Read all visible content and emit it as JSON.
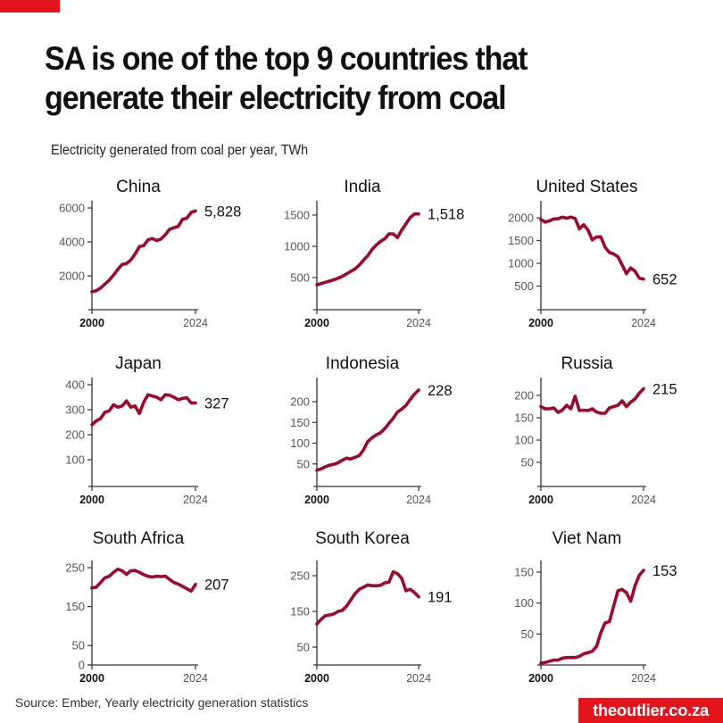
{
  "header": {
    "title": "SA is one of the top 9 countries that generate their electricity from coal",
    "title_line1": "SA is one of the top 9 countries that",
    "title_line2": "generate their electricity from coal",
    "subtitle": "Electricity generated from coal per year, TWh"
  },
  "footer": {
    "source": "Source: Ember, Yearly electricity generation statistics",
    "brand": "theoutlier.co.za"
  },
  "colors": {
    "line": "#9b0b2e",
    "accent": "#e3141b",
    "axis": "#333333",
    "tick_label": "#555555"
  },
  "chart_data": [
    {
      "type": "line",
      "title": "China",
      "xlabel": "",
      "ylabel": "TWh",
      "x_tick_labels": [
        "2000",
        "2024"
      ],
      "y_ticks": [
        2000,
        4000,
        6000
      ],
      "ylim": [
        0,
        6500
      ],
      "end_label": "5,828",
      "x": [
        2000,
        2001,
        2002,
        2003,
        2004,
        2005,
        2006,
        2007,
        2008,
        2009,
        2010,
        2011,
        2012,
        2013,
        2014,
        2015,
        2016,
        2017,
        2018,
        2019,
        2020,
        2021,
        2022,
        2023,
        2024
      ],
      "values": [
        1060,
        1120,
        1280,
        1510,
        1740,
        2040,
        2380,
        2670,
        2720,
        2930,
        3280,
        3720,
        3780,
        4120,
        4200,
        4080,
        4170,
        4420,
        4740,
        4830,
        4920,
        5330,
        5400,
        5740,
        5828
      ]
    },
    {
      "type": "line",
      "title": "India",
      "xlabel": "",
      "ylabel": "TWh",
      "x_tick_labels": [
        "2000",
        "2024"
      ],
      "y_ticks": [
        500,
        1000,
        1500
      ],
      "ylim": [
        0,
        1650
      ],
      "end_label": "1,518",
      "x": [
        2000,
        2001,
        2002,
        2003,
        2004,
        2005,
        2006,
        2007,
        2008,
        2009,
        2010,
        2011,
        2012,
        2013,
        2014,
        2015,
        2016,
        2017,
        2018,
        2019,
        2020,
        2021,
        2022,
        2023,
        2024
      ],
      "values": [
        385,
        405,
        425,
        445,
        465,
        490,
        520,
        560,
        600,
        640,
        700,
        780,
        850,
        950,
        1020,
        1080,
        1120,
        1200,
        1200,
        1140,
        1260,
        1360,
        1460,
        1518,
        1518
      ]
    },
    {
      "type": "line",
      "title": "United States",
      "xlabel": "",
      "ylabel": "TWh",
      "x_tick_labels": [
        "2000",
        "2024"
      ],
      "y_ticks": [
        500,
        1000,
        1500,
        2000
      ],
      "ylim": [
        0,
        2250
      ],
      "end_label": "652",
      "x": [
        2000,
        2001,
        2002,
        2003,
        2004,
        2005,
        2006,
        2007,
        2008,
        2009,
        2010,
        2011,
        2012,
        2013,
        2014,
        2015,
        2016,
        2017,
        2018,
        2019,
        2020,
        2021,
        2022,
        2023,
        2024
      ],
      "values": [
        1966,
        1904,
        1933,
        1974,
        1978,
        2013,
        1991,
        2016,
        1986,
        1756,
        1847,
        1733,
        1514,
        1581,
        1582,
        1352,
        1239,
        1206,
        1146,
        965,
        773,
        898,
        828,
        675,
        652
      ]
    },
    {
      "type": "line",
      "title": "Japan",
      "xlabel": "",
      "ylabel": "TWh",
      "x_tick_labels": [
        "2000",
        "2024"
      ],
      "y_ticks": [
        100,
        200,
        300,
        400
      ],
      "ylim": [
        0,
        405
      ],
      "end_label": "327",
      "x": [
        2000,
        2001,
        2002,
        2003,
        2004,
        2005,
        2006,
        2007,
        2008,
        2009,
        2010,
        2011,
        2012,
        2013,
        2014,
        2015,
        2016,
        2017,
        2018,
        2019,
        2020,
        2021,
        2022,
        2023,
        2024
      ],
      "values": [
        240,
        255,
        265,
        290,
        295,
        320,
        310,
        315,
        335,
        310,
        315,
        285,
        330,
        360,
        355,
        350,
        340,
        360,
        358,
        350,
        340,
        345,
        348,
        327,
        327
      ]
    },
    {
      "type": "line",
      "title": "Indonesia",
      "xlabel": "",
      "ylabel": "TWh",
      "x_tick_labels": [
        "2000",
        "2024"
      ],
      "y_ticks": [
        50,
        100,
        150,
        200
      ],
      "ylim": [
        0,
        245
      ],
      "end_label": "228",
      "x": [
        2000,
        2001,
        2002,
        2003,
        2004,
        2005,
        2006,
        2007,
        2008,
        2009,
        2010,
        2011,
        2012,
        2013,
        2014,
        2015,
        2016,
        2017,
        2018,
        2019,
        2020,
        2021,
        2022,
        2023,
        2024
      ],
      "values": [
        35,
        38,
        43,
        47,
        49,
        53,
        59,
        64,
        62,
        66,
        70,
        84,
        104,
        113,
        120,
        125,
        135,
        148,
        160,
        175,
        182,
        191,
        205,
        218,
        228
      ]
    },
    {
      "type": "line",
      "title": "Russia",
      "xlabel": "",
      "ylabel": "TWh",
      "x_tick_labels": [
        "2000",
        "2024"
      ],
      "y_ticks": [
        50,
        100,
        150,
        200
      ],
      "ylim": [
        0,
        222
      ],
      "end_label": "215",
      "x": [
        2000,
        2001,
        2002,
        2003,
        2004,
        2005,
        2006,
        2007,
        2008,
        2009,
        2010,
        2011,
        2012,
        2013,
        2014,
        2015,
        2016,
        2017,
        2018,
        2019,
        2020,
        2021,
        2022,
        2023,
        2024
      ],
      "values": [
        175,
        170,
        170,
        172,
        162,
        167,
        178,
        170,
        198,
        166,
        167,
        166,
        170,
        163,
        160,
        160,
        172,
        175,
        178,
        188,
        175,
        185,
        192,
        205,
        215
      ]
    },
    {
      "type": "line",
      "title": "South Africa",
      "xlabel": "",
      "ylabel": "TWh",
      "x_tick_labels": [
        "2000",
        "2024"
      ],
      "y_ticks": [
        0,
        50,
        150,
        250
      ],
      "ylim": [
        0,
        265
      ],
      "end_label": "207",
      "x": [
        2000,
        2001,
        2002,
        2003,
        2004,
        2005,
        2006,
        2007,
        2008,
        2009,
        2010,
        2011,
        2012,
        2013,
        2014,
        2015,
        2016,
        2017,
        2018,
        2019,
        2020,
        2021,
        2022,
        2023,
        2024
      ],
      "values": [
        198,
        200,
        212,
        224,
        228,
        238,
        246,
        242,
        233,
        242,
        243,
        238,
        232,
        228,
        226,
        228,
        227,
        228,
        220,
        212,
        208,
        202,
        196,
        190,
        207
      ]
    },
    {
      "type": "line",
      "title": "South Korea",
      "xlabel": "",
      "ylabel": "TWh",
      "x_tick_labels": [
        "2000",
        "2024"
      ],
      "y_ticks": [
        50,
        150,
        250
      ],
      "ylim": [
        0,
        285
      ],
      "end_label": "191",
      "x": [
        2000,
        2001,
        2002,
        2003,
        2004,
        2005,
        2006,
        2007,
        2008,
        2009,
        2010,
        2011,
        2012,
        2013,
        2014,
        2015,
        2016,
        2017,
        2018,
        2019,
        2020,
        2021,
        2022,
        2023,
        2024
      ],
      "values": [
        115,
        128,
        138,
        140,
        143,
        150,
        153,
        165,
        182,
        200,
        212,
        218,
        224,
        222,
        222,
        223,
        230,
        232,
        261,
        256,
        243,
        208,
        212,
        203,
        191
      ]
    },
    {
      "type": "line",
      "title": "Viet Nam",
      "xlabel": "",
      "ylabel": "TWh",
      "x_tick_labels": [
        "2000",
        "2024"
      ],
      "y_ticks": [
        50,
        100,
        150
      ],
      "ylim": [
        0,
        163
      ],
      "end_label": "153",
      "x": [
        2000,
        2001,
        2002,
        2003,
        2004,
        2005,
        2006,
        2007,
        2008,
        2009,
        2010,
        2011,
        2012,
        2013,
        2014,
        2015,
        2016,
        2017,
        2018,
        2019,
        2020,
        2021,
        2022,
        2023,
        2024
      ],
      "values": [
        3,
        4,
        6,
        8,
        8,
        11,
        12,
        12,
        12,
        14,
        18,
        20,
        22,
        30,
        52,
        68,
        70,
        95,
        120,
        122,
        117,
        103,
        128,
        145,
        153
      ]
    }
  ]
}
